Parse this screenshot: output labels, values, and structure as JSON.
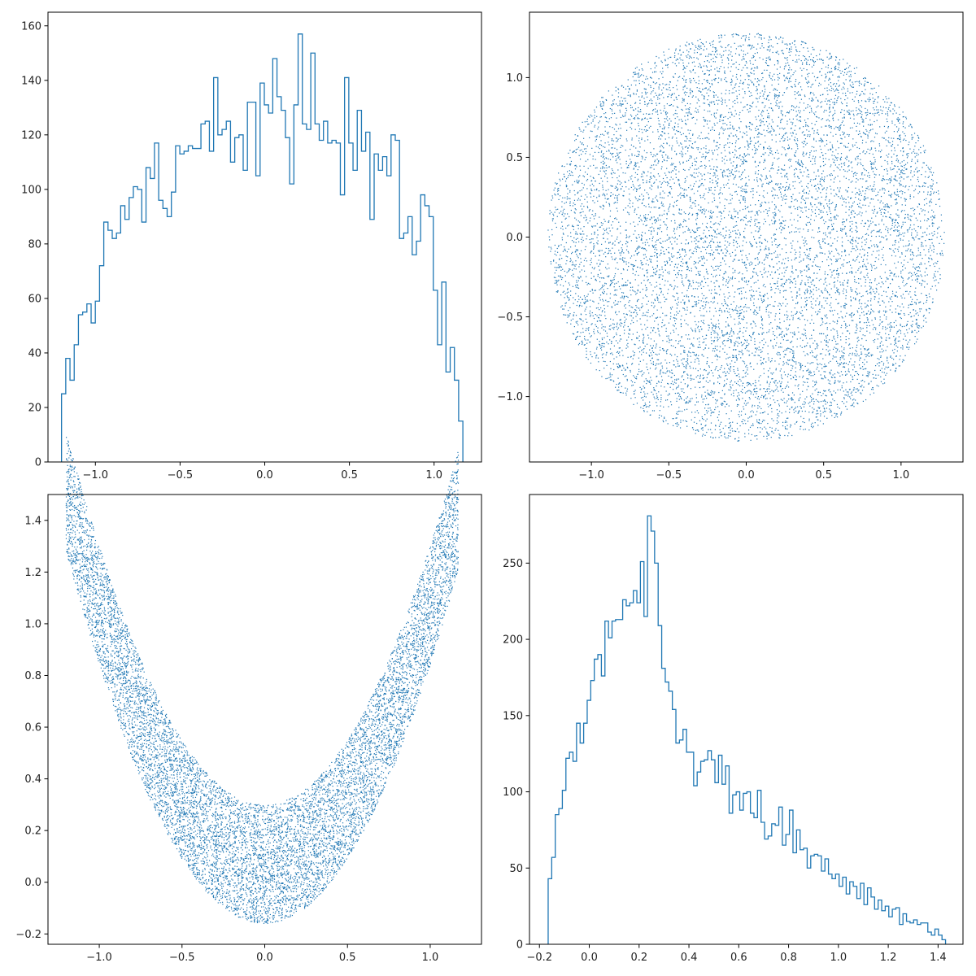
{
  "figure": {
    "panel_count": 4,
    "series_color": "#1f77b4",
    "background": "#ffffff"
  },
  "chart_data": [
    {
      "type": "histogram",
      "panel": "top-left",
      "title": "",
      "xlabel": "",
      "ylabel": "",
      "xlim": [
        -1.28,
        1.28
      ],
      "ylim": [
        0,
        165
      ],
      "xticks": [
        -1.0,
        -0.5,
        0.0,
        0.5,
        1.0
      ],
      "xtick_labels": [
        "−1.0",
        "−0.5",
        "0.0",
        "0.5",
        "1.0"
      ],
      "yticks": [
        0,
        20,
        40,
        60,
        80,
        100,
        120,
        140,
        160
      ],
      "ytick_labels": [
        "0",
        "20",
        "40",
        "60",
        "80",
        "100",
        "120",
        "140",
        "160"
      ],
      "bin_range": [
        -1.2,
        1.17
      ],
      "counts": [
        25,
        38,
        30,
        43,
        54,
        55,
        58,
        51,
        59,
        72,
        88,
        85,
        82,
        84,
        94,
        89,
        97,
        101,
        100,
        88,
        108,
        104,
        117,
        96,
        93,
        90,
        99,
        116,
        113,
        114,
        116,
        115,
        115,
        124,
        125,
        114,
        141,
        120,
        122,
        125,
        110,
        119,
        120,
        107,
        132,
        132,
        105,
        139,
        131,
        128,
        148,
        134,
        129,
        119,
        102,
        131,
        157,
        124,
        122,
        150,
        124,
        118,
        125,
        117,
        118,
        117,
        98,
        141,
        117,
        107,
        129,
        114,
        121,
        89,
        113,
        107,
        112,
        105,
        120,
        118,
        82,
        84,
        90,
        76,
        81,
        98,
        94,
        90,
        63,
        43,
        66,
        33,
        42,
        30,
        15
      ]
    },
    {
      "type": "scatter",
      "panel": "top-right",
      "title": "",
      "xlabel": "",
      "ylabel": "",
      "xlim": [
        -1.4,
        1.4
      ],
      "ylim": [
        -1.41,
        1.41
      ],
      "xticks": [
        -1.0,
        -0.5,
        0.0,
        0.5,
        1.0
      ],
      "xtick_labels": [
        "−1.0",
        "−0.5",
        "0.0",
        "0.5",
        "1.0"
      ],
      "yticks": [
        -1.0,
        -0.5,
        0.0,
        0.5,
        1.0
      ],
      "ytick_labels": [
        "−1.0",
        "−0.5",
        "0.0",
        "0.5",
        "1.0"
      ],
      "shape": "disk",
      "center": [
        0.0,
        0.0
      ],
      "radius": 1.28,
      "point_count": 10000
    },
    {
      "type": "scatter",
      "panel": "bottom-left",
      "title": "",
      "xlabel": "",
      "ylabel": "",
      "xlim": [
        -1.31,
        1.31
      ],
      "ylim": [
        -0.24,
        1.5
      ],
      "xticks": [
        -1.0,
        -0.5,
        0.0,
        0.5,
        1.0
      ],
      "xtick_labels": [
        "−1.0",
        "−0.5",
        "0.0",
        "0.5",
        "1.0"
      ],
      "yticks": [
        -0.2,
        0.0,
        0.2,
        0.4,
        0.6,
        0.8,
        1.0,
        1.2,
        1.4
      ],
      "ytick_labels": [
        "−0.2",
        "0.0",
        "0.2",
        "0.4",
        "0.6",
        "0.8",
        "1.0",
        "1.2",
        "1.4"
      ],
      "shape": "parabolic band",
      "x_range": [
        -1.2,
        1.17
      ],
      "band_lower": "y = x^2 - 0.16",
      "band_upper": "y = x^2 + 0.3",
      "point_count": 10000
    },
    {
      "type": "histogram",
      "panel": "bottom-right",
      "title": "",
      "xlabel": "",
      "ylabel": "",
      "xlim": [
        -0.24,
        1.5
      ],
      "ylim": [
        0,
        295
      ],
      "xticks": [
        -0.2,
        0.0,
        0.2,
        0.4,
        0.6,
        0.8,
        1.0,
        1.2,
        1.4
      ],
      "xtick_labels": [
        "−0.2",
        "0.0",
        "0.2",
        "0.4",
        "0.6",
        "0.8",
        "1.0",
        "1.2",
        "1.4"
      ],
      "yticks": [
        0,
        50,
        100,
        150,
        200,
        250
      ],
      "ytick_labels": [
        "0",
        "50",
        "100",
        "150",
        "200",
        "250"
      ],
      "bin_range": [
        -0.165,
        1.43
      ],
      "counts": [
        43,
        57,
        85,
        89,
        101,
        122,
        126,
        120,
        145,
        132,
        145,
        160,
        173,
        187,
        190,
        176,
        212,
        201,
        212,
        213,
        213,
        226,
        222,
        224,
        232,
        224,
        251,
        215,
        281,
        271,
        250,
        209,
        181,
        172,
        166,
        154,
        132,
        134,
        141,
        126,
        126,
        104,
        113,
        120,
        121,
        127,
        121,
        106,
        124,
        105,
        117,
        86,
        98,
        100,
        88,
        99,
        100,
        86,
        83,
        101,
        80,
        69,
        71,
        79,
        78,
        90,
        65,
        72,
        88,
        60,
        75,
        62,
        63,
        50,
        58,
        59,
        58,
        48,
        56,
        46,
        43,
        46,
        38,
        44,
        33,
        41,
        38,
        30,
        40,
        26,
        37,
        31,
        23,
        29,
        22,
        25,
        18,
        23,
        24,
        13,
        20,
        15,
        14,
        16,
        13,
        14,
        14,
        8,
        6,
        10,
        6,
        3
      ]
    }
  ]
}
